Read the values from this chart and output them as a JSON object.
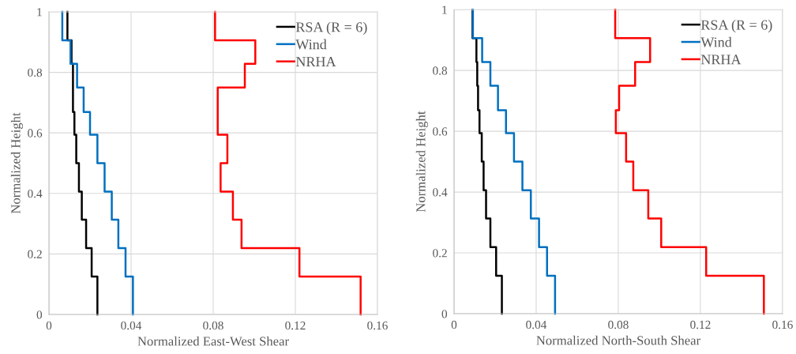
{
  "chart_data": [
    {
      "type": "line",
      "xlabel": "Normalized East-West Shear",
      "ylabel": "Normalized Height",
      "xlim": [
        0,
        0.16
      ],
      "xticks": [
        0,
        0.04,
        0.08,
        0.12,
        0.16
      ],
      "ylim": [
        0,
        1
      ],
      "yticks": [
        0,
        0.2,
        0.4,
        0.6,
        0.8,
        1
      ],
      "grid": true,
      "legend": "top right",
      "marker": "none",
      "line_style": "solid",
      "series": [
        {
          "name": "RSA (R = 6)",
          "color": "#000000",
          "x": [
            0.0236,
            0.0236,
            0.0208,
            0.0208,
            0.0181,
            0.0181,
            0.016,
            0.016,
            0.0146,
            0.0146,
            0.0133,
            0.0133,
            0.0124,
            0.0124,
            0.0117,
            0.0117,
            0.0117,
            0.0117,
            0.011,
            0.011,
            0.009,
            0.009
          ],
          "values": [
            0,
            0.125,
            0.125,
            0.219,
            0.219,
            0.313,
            0.313,
            0.406,
            0.406,
            0.5,
            0.5,
            0.594,
            0.594,
            0.669,
            0.669,
            0.75,
            0.75,
            0.828,
            0.828,
            0.906,
            0.906,
            1
          ]
        },
        {
          "name": "Wind",
          "color": "#0070c0",
          "x": [
            0.0409,
            0.0409,
            0.0373,
            0.0373,
            0.0338,
            0.0338,
            0.0306,
            0.0306,
            0.0271,
            0.0271,
            0.0236,
            0.0236,
            0.02,
            0.02,
            0.0169,
            0.0169,
            0.0137,
            0.0137,
            0.0105,
            0.0105,
            0.0065,
            0.0065
          ],
          "values": [
            0,
            0.125,
            0.125,
            0.219,
            0.219,
            0.313,
            0.313,
            0.406,
            0.406,
            0.5,
            0.5,
            0.594,
            0.594,
            0.669,
            0.669,
            0.75,
            0.75,
            0.828,
            0.828,
            0.906,
            0.906,
            1
          ]
        },
        {
          "name": "NRHA",
          "color": "#ff0000",
          "x": [
            0.1518,
            0.1518,
            0.122,
            0.122,
            0.0938,
            0.0938,
            0.0896,
            0.0896,
            0.0836,
            0.0836,
            0.0869,
            0.0869,
            0.0822,
            0.0822,
            0.0822,
            0.0822,
            0.0954,
            0.0954,
            0.1005,
            0.1005,
            0.0809,
            0.0809
          ],
          "values": [
            0,
            0.125,
            0.125,
            0.219,
            0.219,
            0.313,
            0.313,
            0.406,
            0.406,
            0.5,
            0.5,
            0.594,
            0.594,
            0.669,
            0.669,
            0.75,
            0.75,
            0.828,
            0.828,
            0.906,
            0.906,
            1
          ]
        }
      ]
    },
    {
      "type": "line",
      "xlabel": "Normalized North-South Shear",
      "ylabel": "Normalized Height",
      "xlim": [
        0,
        0.16
      ],
      "xticks": [
        0,
        0.04,
        0.08,
        0.12,
        0.16
      ],
      "ylim": [
        0,
        1
      ],
      "yticks": [
        0,
        0.2,
        0.4,
        0.6,
        0.8,
        1
      ],
      "grid": true,
      "legend": "top right",
      "marker": "none",
      "line_style": "solid",
      "series": [
        {
          "name": "RSA (R = 6)",
          "color": "#000000",
          "x": [
            0.0233,
            0.0233,
            0.0205,
            0.0205,
            0.0177,
            0.0177,
            0.0156,
            0.0156,
            0.0144,
            0.0144,
            0.0135,
            0.0135,
            0.0124,
            0.0124,
            0.0117,
            0.0117,
            0.0113,
            0.0113,
            0.0109,
            0.0109,
            0.009,
            0.009
          ],
          "values": [
            0,
            0.125,
            0.125,
            0.219,
            0.219,
            0.313,
            0.313,
            0.406,
            0.406,
            0.5,
            0.5,
            0.594,
            0.594,
            0.669,
            0.669,
            0.75,
            0.75,
            0.828,
            0.828,
            0.906,
            0.906,
            1
          ]
        },
        {
          "name": "Wind",
          "color": "#0070c0",
          "x": [
            0.0492,
            0.0492,
            0.0453,
            0.0453,
            0.0414,
            0.0414,
            0.0374,
            0.0374,
            0.0333,
            0.0333,
            0.0292,
            0.0292,
            0.0253,
            0.0253,
            0.0214,
            0.0214,
            0.0177,
            0.0177,
            0.0137,
            0.0137,
            0.0092,
            0.0092
          ],
          "values": [
            0,
            0.125,
            0.125,
            0.219,
            0.219,
            0.313,
            0.313,
            0.406,
            0.406,
            0.5,
            0.5,
            0.594,
            0.594,
            0.669,
            0.669,
            0.75,
            0.75,
            0.828,
            0.828,
            0.906,
            0.906,
            1
          ]
        },
        {
          "name": "NRHA",
          "color": "#ff0000",
          "x": [
            0.1509,
            0.1509,
            0.1228,
            0.1228,
            0.1009,
            0.1009,
            0.0946,
            0.0946,
            0.0873,
            0.0873,
            0.0838,
            0.0838,
            0.0788,
            0.0788,
            0.0804,
            0.0804,
            0.0882,
            0.0882,
            0.0955,
            0.0955,
            0.0785,
            0.0785
          ],
          "values": [
            0,
            0.125,
            0.125,
            0.219,
            0.219,
            0.313,
            0.313,
            0.406,
            0.406,
            0.5,
            0.5,
            0.594,
            0.594,
            0.669,
            0.669,
            0.75,
            0.75,
            0.828,
            0.828,
            0.906,
            0.906,
            1
          ]
        }
      ]
    }
  ]
}
